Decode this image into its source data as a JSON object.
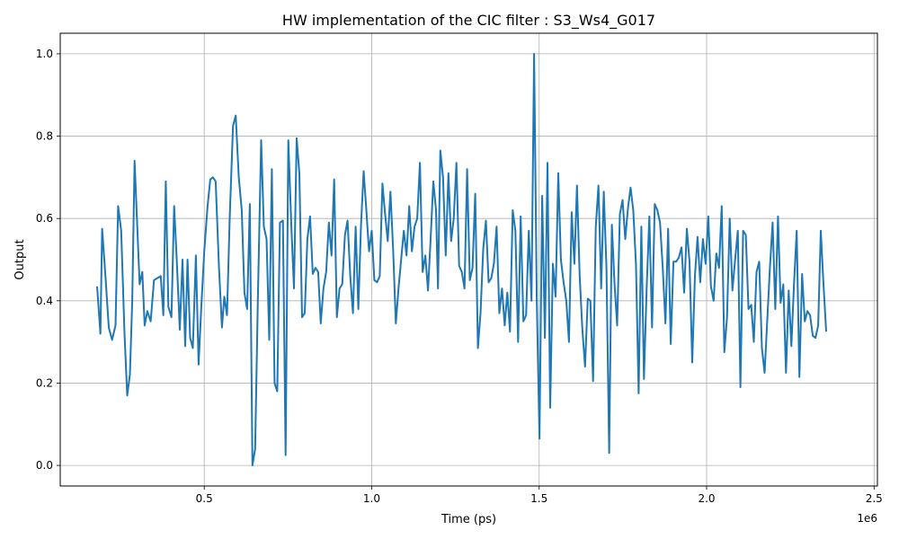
{
  "chart_data": {
    "type": "line",
    "title": "HW implementation of the CIC filter : S3_Ws4_G017",
    "xlabel": "Time (ps)",
    "ylabel": "Output",
    "x_offset_label": "1e6",
    "xlim": [
      70000,
      2510000
    ],
    "ylim": [
      -0.05,
      1.05
    ],
    "grid": true,
    "x_ticks": [
      {
        "value": 500000,
        "label": "0.5"
      },
      {
        "value": 1000000,
        "label": "1.0"
      },
      {
        "value": 1500000,
        "label": "1.5"
      },
      {
        "value": 2000000,
        "label": "2.0"
      },
      {
        "value": 2500000,
        "label": "2.5"
      }
    ],
    "y_ticks": [
      {
        "value": 0.0,
        "label": "0.0"
      },
      {
        "value": 0.2,
        "label": "0.2"
      },
      {
        "value": 0.4,
        "label": "0.4"
      },
      {
        "value": 0.6,
        "label": "0.6"
      },
      {
        "value": 0.8,
        "label": "0.8"
      },
      {
        "value": 1.0,
        "label": "1.0"
      }
    ],
    "series": [
      {
        "color": "#1f77b4",
        "points": [
          [
            180000,
            0.435
          ],
          [
            190000,
            0.32
          ],
          [
            195000,
            0.575
          ],
          [
            205000,
            0.46
          ],
          [
            215000,
            0.335
          ],
          [
            225000,
            0.305
          ],
          [
            235000,
            0.34
          ],
          [
            243000,
            0.63
          ],
          [
            252000,
            0.57
          ],
          [
            262000,
            0.32
          ],
          [
            270000,
            0.17
          ],
          [
            278000,
            0.22
          ],
          [
            285000,
            0.4
          ],
          [
            292000,
            0.74
          ],
          [
            300000,
            0.58
          ],
          [
            307000,
            0.44
          ],
          [
            315000,
            0.47
          ],
          [
            322000,
            0.34
          ],
          [
            330000,
            0.375
          ],
          [
            340000,
            0.35
          ],
          [
            350000,
            0.45
          ],
          [
            360000,
            0.455
          ],
          [
            370000,
            0.46
          ],
          [
            378000,
            0.365
          ],
          [
            385000,
            0.69
          ],
          [
            393000,
            0.385
          ],
          [
            402000,
            0.36
          ],
          [
            410000,
            0.63
          ],
          [
            418000,
            0.5
          ],
          [
            427000,
            0.33
          ],
          [
            435000,
            0.5
          ],
          [
            443000,
            0.29
          ],
          [
            450000,
            0.5
          ],
          [
            458000,
            0.31
          ],
          [
            466000,
            0.285
          ],
          [
            475000,
            0.51
          ],
          [
            483000,
            0.245
          ],
          [
            491000,
            0.38
          ],
          [
            500000,
            0.52
          ],
          [
            510000,
            0.63
          ],
          [
            518000,
            0.695
          ],
          [
            526000,
            0.7
          ],
          [
            534000,
            0.69
          ],
          [
            544000,
            0.48
          ],
          [
            553000,
            0.335
          ],
          [
            560000,
            0.41
          ],
          [
            568000,
            0.365
          ],
          [
            576000,
            0.6
          ],
          [
            586000,
            0.825
          ],
          [
            594000,
            0.85
          ],
          [
            603000,
            0.7
          ],
          [
            612000,
            0.62
          ],
          [
            620000,
            0.42
          ],
          [
            628000,
            0.38
          ],
          [
            636000,
            0.635
          ],
          [
            644000,
            0.0
          ],
          [
            652000,
            0.04
          ],
          [
            660000,
            0.4
          ],
          [
            670000,
            0.79
          ],
          [
            678000,
            0.58
          ],
          [
            686000,
            0.55
          ],
          [
            694000,
            0.305
          ],
          [
            702000,
            0.72
          ],
          [
            710000,
            0.2
          ],
          [
            718000,
            0.18
          ],
          [
            726000,
            0.59
          ],
          [
            735000,
            0.595
          ],
          [
            743000,
            0.025
          ],
          [
            751000,
            0.79
          ],
          [
            760000,
            0.58
          ],
          [
            768000,
            0.43
          ],
          [
            776000,
            0.795
          ],
          [
            784000,
            0.71
          ],
          [
            792000,
            0.36
          ],
          [
            800000,
            0.37
          ],
          [
            808000,
            0.55
          ],
          [
            816000,
            0.605
          ],
          [
            824000,
            0.465
          ],
          [
            832000,
            0.48
          ],
          [
            840000,
            0.47
          ],
          [
            848000,
            0.345
          ],
          [
            856000,
            0.43
          ],
          [
            864000,
            0.47
          ],
          [
            872000,
            0.59
          ],
          [
            880000,
            0.51
          ],
          [
            888000,
            0.695
          ],
          [
            896000,
            0.36
          ],
          [
            904000,
            0.43
          ],
          [
            912000,
            0.44
          ],
          [
            920000,
            0.56
          ],
          [
            928000,
            0.595
          ],
          [
            936000,
            0.46
          ],
          [
            944000,
            0.37
          ],
          [
            952000,
            0.58
          ],
          [
            960000,
            0.38
          ],
          [
            968000,
            0.58
          ],
          [
            976000,
            0.715
          ],
          [
            984000,
            0.62
          ],
          [
            992000,
            0.52
          ],
          [
            1000000,
            0.57
          ],
          [
            1008000,
            0.45
          ],
          [
            1016000,
            0.445
          ],
          [
            1024000,
            0.46
          ],
          [
            1032000,
            0.685
          ],
          [
            1040000,
            0.61
          ],
          [
            1048000,
            0.545
          ],
          [
            1056000,
            0.665
          ],
          [
            1064000,
            0.525
          ],
          [
            1072000,
            0.345
          ],
          [
            1080000,
            0.43
          ],
          [
            1088000,
            0.5
          ],
          [
            1096000,
            0.57
          ],
          [
            1104000,
            0.51
          ],
          [
            1112000,
            0.63
          ],
          [
            1120000,
            0.52
          ],
          [
            1128000,
            0.58
          ],
          [
            1136000,
            0.6
          ],
          [
            1144000,
            0.735
          ],
          [
            1152000,
            0.47
          ],
          [
            1160000,
            0.51
          ],
          [
            1168000,
            0.425
          ],
          [
            1176000,
            0.55
          ],
          [
            1184000,
            0.69
          ],
          [
            1192000,
            0.62
          ],
          [
            1198000,
            0.43
          ],
          [
            1205000,
            0.765
          ],
          [
            1213000,
            0.7
          ],
          [
            1221000,
            0.51
          ],
          [
            1229000,
            0.71
          ],
          [
            1237000,
            0.545
          ],
          [
            1245000,
            0.6
          ],
          [
            1253000,
            0.735
          ],
          [
            1261000,
            0.485
          ],
          [
            1269000,
            0.47
          ],
          [
            1277000,
            0.43
          ],
          [
            1285000,
            0.72
          ],
          [
            1293000,
            0.45
          ],
          [
            1301000,
            0.48
          ],
          [
            1309000,
            0.66
          ],
          [
            1317000,
            0.285
          ],
          [
            1325000,
            0.37
          ],
          [
            1333000,
            0.525
          ],
          [
            1341000,
            0.595
          ],
          [
            1349000,
            0.445
          ],
          [
            1357000,
            0.455
          ],
          [
            1365000,
            0.49
          ],
          [
            1373000,
            0.58
          ],
          [
            1381000,
            0.37
          ],
          [
            1389000,
            0.43
          ],
          [
            1397000,
            0.34
          ],
          [
            1405000,
            0.42
          ],
          [
            1413000,
            0.325
          ],
          [
            1421000,
            0.62
          ],
          [
            1429000,
            0.57
          ],
          [
            1437000,
            0.3
          ],
          [
            1445000,
            0.605
          ],
          [
            1453000,
            0.35
          ],
          [
            1461000,
            0.365
          ],
          [
            1469000,
            0.57
          ],
          [
            1477000,
            0.4
          ],
          [
            1485000,
            1.0
          ],
          [
            1493000,
            0.4
          ],
          [
            1501000,
            0.065
          ],
          [
            1509000,
            0.655
          ],
          [
            1517000,
            0.31
          ],
          [
            1525000,
            0.735
          ],
          [
            1533000,
            0.14
          ],
          [
            1541000,
            0.49
          ],
          [
            1549000,
            0.41
          ],
          [
            1557000,
            0.71
          ],
          [
            1565000,
            0.5
          ],
          [
            1573000,
            0.445
          ],
          [
            1581000,
            0.4
          ],
          [
            1589000,
            0.3
          ],
          [
            1597000,
            0.615
          ],
          [
            1605000,
            0.49
          ],
          [
            1613000,
            0.68
          ],
          [
            1621000,
            0.46
          ],
          [
            1629000,
            0.33
          ],
          [
            1637000,
            0.24
          ],
          [
            1645000,
            0.405
          ],
          [
            1653000,
            0.4
          ],
          [
            1661000,
            0.205
          ],
          [
            1669000,
            0.58
          ],
          [
            1677000,
            0.68
          ],
          [
            1685000,
            0.43
          ],
          [
            1693000,
            0.665
          ],
          [
            1701000,
            0.48
          ],
          [
            1709000,
            0.03
          ],
          [
            1717000,
            0.585
          ],
          [
            1725000,
            0.44
          ],
          [
            1733000,
            0.34
          ],
          [
            1741000,
            0.61
          ],
          [
            1749000,
            0.645
          ],
          [
            1757000,
            0.55
          ],
          [
            1765000,
            0.625
          ],
          [
            1773000,
            0.675
          ],
          [
            1781000,
            0.62
          ],
          [
            1789000,
            0.49
          ],
          [
            1797000,
            0.175
          ],
          [
            1805000,
            0.58
          ],
          [
            1813000,
            0.21
          ],
          [
            1821000,
            0.43
          ],
          [
            1829000,
            0.605
          ],
          [
            1837000,
            0.335
          ],
          [
            1845000,
            0.635
          ],
          [
            1853000,
            0.62
          ],
          [
            1861000,
            0.59
          ],
          [
            1869000,
            0.48
          ],
          [
            1877000,
            0.345
          ],
          [
            1885000,
            0.575
          ],
          [
            1893000,
            0.295
          ],
          [
            1901000,
            0.495
          ],
          [
            1909000,
            0.495
          ],
          [
            1917000,
            0.505
          ],
          [
            1925000,
            0.53
          ],
          [
            1933000,
            0.42
          ],
          [
            1941000,
            0.575
          ],
          [
            1949000,
            0.495
          ],
          [
            1957000,
            0.25
          ],
          [
            1965000,
            0.46
          ],
          [
            1973000,
            0.555
          ],
          [
            1981000,
            0.445
          ],
          [
            1989000,
            0.55
          ],
          [
            1997000,
            0.49
          ],
          [
            2005000,
            0.605
          ],
          [
            2013000,
            0.435
          ],
          [
            2021000,
            0.4
          ],
          [
            2029000,
            0.515
          ],
          [
            2037000,
            0.48
          ],
          [
            2045000,
            0.63
          ],
          [
            2053000,
            0.275
          ],
          [
            2061000,
            0.36
          ],
          [
            2069000,
            0.6
          ],
          [
            2077000,
            0.425
          ],
          [
            2085000,
            0.5
          ],
          [
            2093000,
            0.57
          ],
          [
            2101000,
            0.19
          ],
          [
            2109000,
            0.57
          ],
          [
            2117000,
            0.56
          ],
          [
            2125000,
            0.38
          ],
          [
            2133000,
            0.39
          ],
          [
            2141000,
            0.3
          ],
          [
            2149000,
            0.47
          ],
          [
            2157000,
            0.495
          ],
          [
            2165000,
            0.285
          ],
          [
            2173000,
            0.225
          ],
          [
            2181000,
            0.35
          ],
          [
            2189000,
            0.48
          ],
          [
            2197000,
            0.59
          ],
          [
            2205000,
            0.38
          ],
          [
            2213000,
            0.605
          ],
          [
            2221000,
            0.395
          ],
          [
            2229000,
            0.44
          ],
          [
            2237000,
            0.225
          ],
          [
            2245000,
            0.425
          ],
          [
            2253000,
            0.29
          ],
          [
            2261000,
            0.44
          ],
          [
            2269000,
            0.57
          ],
          [
            2277000,
            0.215
          ],
          [
            2285000,
            0.465
          ],
          [
            2293000,
            0.35
          ],
          [
            2301000,
            0.375
          ],
          [
            2309000,
            0.365
          ],
          [
            2317000,
            0.315
          ],
          [
            2325000,
            0.31
          ],
          [
            2333000,
            0.34
          ],
          [
            2341000,
            0.57
          ],
          [
            2349000,
            0.44
          ],
          [
            2357000,
            0.325
          ]
        ]
      }
    ]
  }
}
